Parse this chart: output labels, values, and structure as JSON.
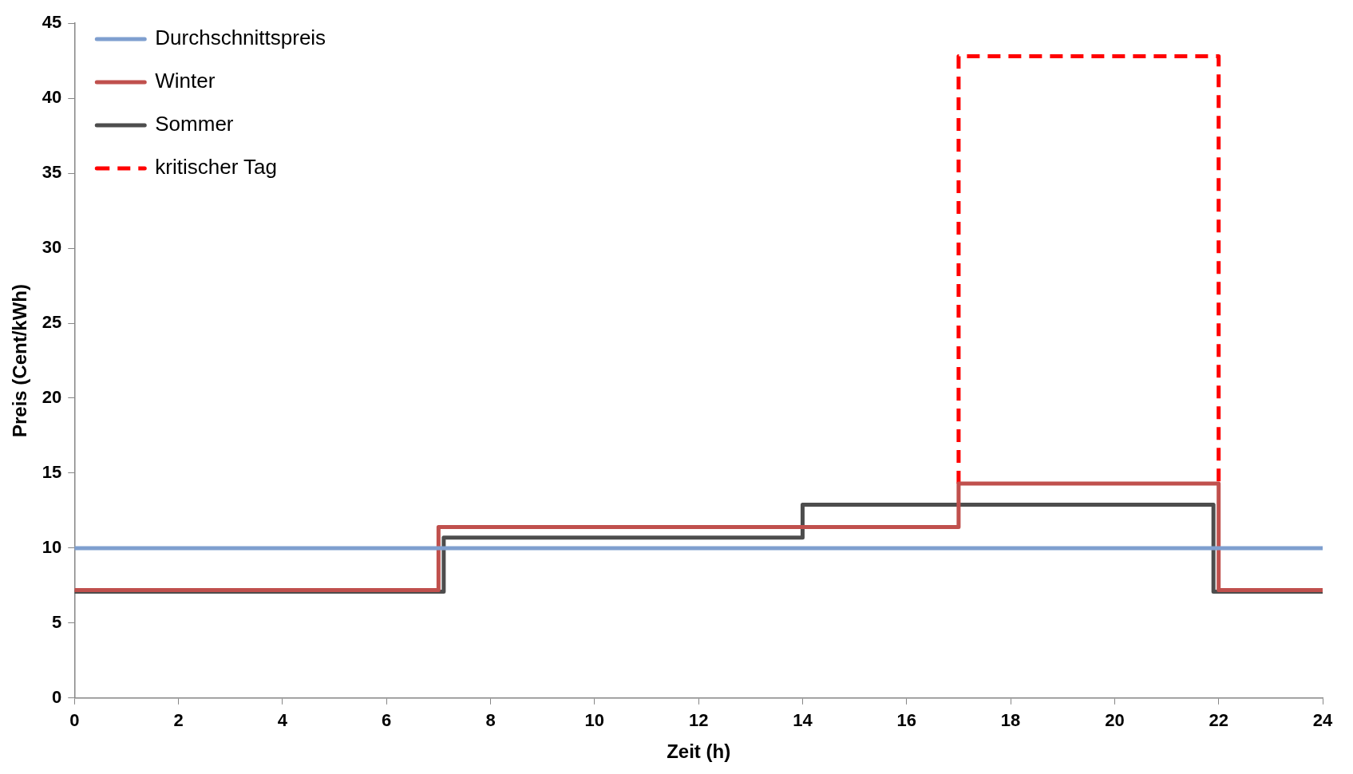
{
  "chart_data": {
    "type": "step",
    "xlabel": "Zeit (h)",
    "ylabel": "Preis (Cent/kWh)",
    "xlim": [
      0,
      24
    ],
    "xticks": [
      0,
      2,
      4,
      6,
      8,
      10,
      12,
      14,
      16,
      18,
      20,
      22,
      24
    ],
    "ylim": [
      0,
      45
    ],
    "yticks": [
      0,
      5,
      10,
      15,
      20,
      25,
      30,
      35,
      40,
      45
    ],
    "grid": false,
    "legend": "top left",
    "series": [
      {
        "name": "Durchschnittspreis",
        "type": "line",
        "color": "#7f9fcf",
        "x": [
          0,
          24
        ],
        "values": [
          10,
          10
        ]
      },
      {
        "name": "Winter",
        "type": "step",
        "color": "#c0504d",
        "x": [
          0,
          7,
          17,
          22,
          24
        ],
        "values": [
          7.2,
          11.4,
          14.3,
          7.2,
          7.2
        ]
      },
      {
        "name": "Sommer",
        "type": "step",
        "color": "#4d4d4d",
        "x": [
          0,
          7.1,
          14,
          21.9,
          24
        ],
        "values": [
          7.1,
          10.7,
          12.9,
          7.1,
          7.1
        ]
      },
      {
        "name": "kritischer Tag",
        "type": "line",
        "line_style": "dashed",
        "color": "#ff0000",
        "x": [
          17,
          17,
          22,
          22
        ],
        "values": [
          14.3,
          42.8,
          42.8,
          14.3
        ]
      }
    ]
  }
}
